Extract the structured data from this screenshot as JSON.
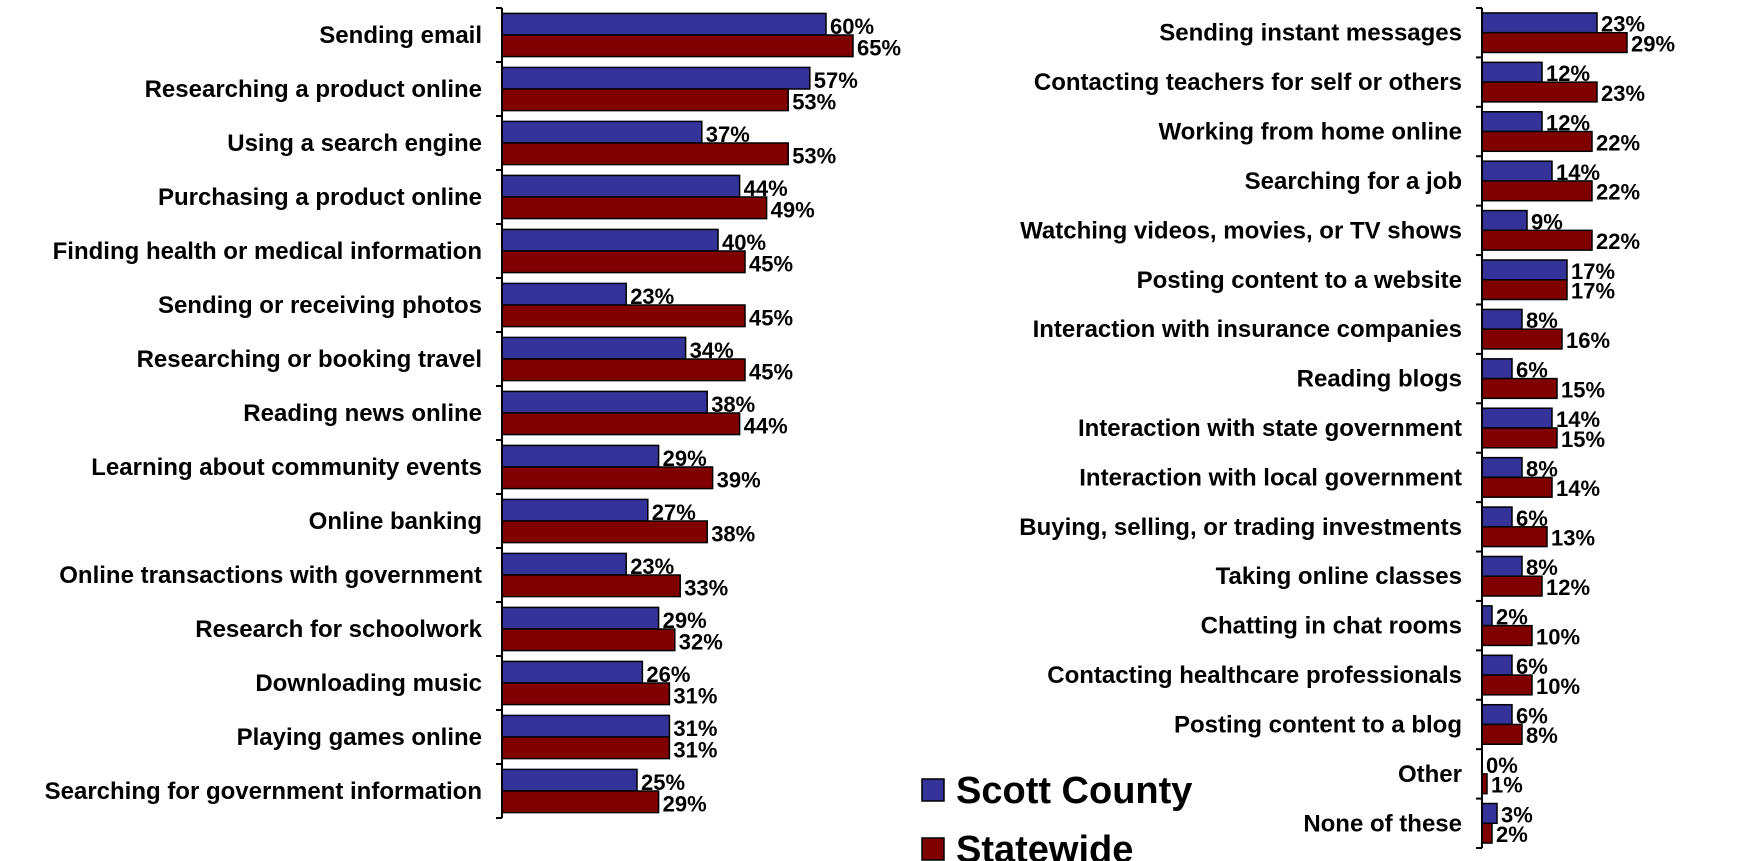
{
  "chart_data": [
    {
      "type": "bar",
      "orientation": "horizontal",
      "series": [
        {
          "name": "Scott County",
          "color": "#333399",
          "values": [
            60,
            57,
            37,
            44,
            40,
            23,
            34,
            38,
            29,
            27,
            23,
            29,
            26,
            31,
            25
          ]
        },
        {
          "name": "Statewide",
          "color": "#800000",
          "values": [
            65,
            53,
            53,
            49,
            45,
            45,
            45,
            44,
            39,
            38,
            33,
            32,
            31,
            31,
            29
          ]
        }
      ],
      "categories": [
        "Sending email",
        "Researching a product online",
        "Using a search engine",
        "Purchasing a product online",
        "Finding health or medical information",
        "Sending or receiving photos",
        "Researching or booking travel",
        "Reading news online",
        "Learning about community events",
        "Online banking",
        "Online transactions with government",
        "Research for schoolwork",
        "Downloading music",
        "Playing games online",
        "Searching for government information"
      ],
      "value_format": "percent",
      "xlim": [
        0,
        100
      ]
    },
    {
      "type": "bar",
      "orientation": "horizontal",
      "series": [
        {
          "name": "Scott County",
          "color": "#333399",
          "values": [
            23,
            12,
            12,
            14,
            9,
            17,
            8,
            6,
            14,
            8,
            6,
            8,
            2,
            6,
            6,
            0,
            3
          ]
        },
        {
          "name": "Statewide",
          "color": "#800000",
          "values": [
            29,
            23,
            22,
            22,
            22,
            17,
            16,
            15,
            15,
            14,
            13,
            12,
            10,
            10,
            8,
            1,
            2
          ]
        }
      ],
      "categories": [
        "Sending instant messages",
        "Contacting teachers for self or others",
        "Working from home online",
        "Searching for a job",
        "Watching videos, movies, or TV shows",
        "Posting content to a website",
        "Interaction with insurance companies",
        "Reading blogs",
        "Interaction with state government",
        "Interaction with local government",
        "Buying, selling, or trading investments",
        "Taking online classes",
        "Chatting in chat rooms",
        "Contacting healthcare professionals",
        "Posting content to a blog",
        "Other",
        "None of these"
      ],
      "value_format": "percent",
      "xlim": [
        0,
        100
      ]
    }
  ],
  "legend": {
    "placement": "bottom-center",
    "items": [
      {
        "label": "Scott County",
        "color": "#333399"
      },
      {
        "label": "Statewide",
        "color": "#800000"
      }
    ]
  }
}
